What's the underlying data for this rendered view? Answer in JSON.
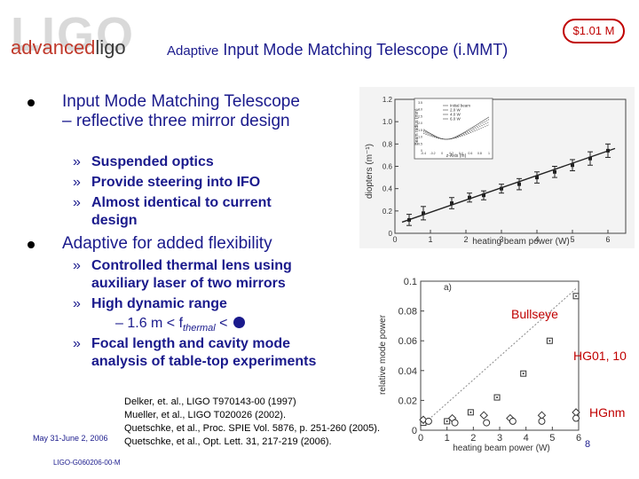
{
  "logo": {
    "bg_text": "LIGO",
    "part1": "advanced",
    "part2": "ligo"
  },
  "badge": "$1.01 M",
  "title": {
    "prefix": "Adaptive",
    "main": "Input Mode Matching Telescope (i.MMT)"
  },
  "bullets": [
    {
      "text": "Input Mode Matching Telescope – reflective three mirror design",
      "subs": [
        "Suspended optics",
        "Provide steering into IFO",
        "Almost identical to current design"
      ]
    },
    {
      "text": "Adaptive for added flexibility",
      "subs": [
        "Controlled thermal lens using auxiliary laser of two mirrors",
        "High dynamic range",
        "Focal length and cavity mode analysis of table-top experiments"
      ]
    }
  ],
  "range_formula": {
    "prefix": "– 1.6 m < f",
    "subscript": "thermal",
    "suffix": " < "
  },
  "references": [
    "Delker, et. al., LIGO T970143-00 (1997)",
    "Mueller, et al., LIGO T020026 (2002).",
    "Quetschke, et al., Proc. SPIE Vol. 5876, p. 251-260 (2005).",
    "Quetschke, et al., Opt. Lett. 31, 217-219 (2006)."
  ],
  "footer": {
    "date": "May 31-June 2, 2006",
    "doc_id": "LIGO-G060206-00-M",
    "page": "8"
  },
  "chart_data": [
    {
      "type": "line",
      "xlabel": "heating beam power (W)",
      "ylabel": "diopters (m⁻¹)",
      "xlim": [
        0,
        6.5
      ],
      "ylim": [
        0,
        1.2
      ],
      "x_ticks": [
        "0",
        "1",
        "2",
        "3",
        "4",
        "5",
        "6"
      ],
      "y_ticks": [
        "0",
        "0.2",
        "0.4",
        "0.6",
        "0.8",
        "1.0",
        "1.2"
      ],
      "points": [
        {
          "x": 0.4,
          "y": 0.12,
          "err": 0.05
        },
        {
          "x": 0.8,
          "y": 0.18,
          "err": 0.06
        },
        {
          "x": 1.6,
          "y": 0.27,
          "err": 0.05
        },
        {
          "x": 2.1,
          "y": 0.32,
          "err": 0.04
        },
        {
          "x": 2.5,
          "y": 0.34,
          "err": 0.04
        },
        {
          "x": 3.0,
          "y": 0.4,
          "err": 0.04
        },
        {
          "x": 3.5,
          "y": 0.44,
          "err": 0.05
        },
        {
          "x": 4.0,
          "y": 0.5,
          "err": 0.05
        },
        {
          "x": 4.5,
          "y": 0.55,
          "err": 0.05
        },
        {
          "x": 5.0,
          "y": 0.61,
          "err": 0.05
        },
        {
          "x": 5.5,
          "y": 0.67,
          "err": 0.06
        },
        {
          "x": 6.0,
          "y": 0.74,
          "err": 0.06
        }
      ],
      "fit": [
        [
          0.2,
          0.1
        ],
        [
          6.2,
          0.76
        ]
      ],
      "inset": {
        "xlabel": "z-Axis (m)",
        "ylabel": "Beam radius (mm)",
        "legend": [
          "Initial beam",
          "2.0 W",
          "4.0 W",
          "6.0 W"
        ],
        "x_ticks": [
          "-0.4",
          "-0.2",
          "0",
          "0.2",
          "0.4",
          "0.6",
          "0.8",
          "1"
        ],
        "y_ticks": [
          "0",
          "0.5",
          "1.0",
          "1.5",
          "2.0",
          "2.5",
          "3.0",
          "3.5"
        ]
      }
    },
    {
      "type": "scatter",
      "panel_label": "a)",
      "xlabel": "heating beam power (W)",
      "ylabel": "relative mode power",
      "xlim": [
        0,
        6
      ],
      "ylim": [
        0,
        0.1
      ],
      "x_ticks": [
        "0",
        "1",
        "2",
        "3",
        "4",
        "5",
        "6"
      ],
      "y_ticks": [
        "0",
        "0.02",
        "0.04",
        "0.06",
        "0.08",
        "0.1"
      ],
      "annotations": [
        "Bullseye",
        "HG01, 10",
        "HGnm"
      ],
      "series": [
        {
          "marker": "square-dot",
          "points": [
            [
              0.1,
              0.005
            ],
            [
              1.0,
              0.006
            ],
            [
              1.9,
              0.012
            ],
            [
              2.9,
              0.022
            ],
            [
              3.9,
              0.038
            ],
            [
              4.9,
              0.06
            ],
            [
              5.9,
              0.09
            ]
          ]
        },
        {
          "marker": "diamond",
          "points": [
            [
              0.1,
              0.007
            ],
            [
              1.2,
              0.008
            ],
            [
              2.4,
              0.01
            ],
            [
              3.4,
              0.008
            ],
            [
              4.6,
              0.01
            ],
            [
              5.9,
              0.012
            ]
          ]
        },
        {
          "marker": "circle",
          "points": [
            [
              0.3,
              0.006
            ],
            [
              1.3,
              0.005
            ],
            [
              2.5,
              0.005
            ],
            [
              3.5,
              0.006
            ],
            [
              4.6,
              0.006
            ],
            [
              5.9,
              0.008
            ]
          ]
        }
      ],
      "trend": [
        [
          0.1,
          0.004
        ],
        [
          5.9,
          0.095
        ]
      ]
    }
  ]
}
